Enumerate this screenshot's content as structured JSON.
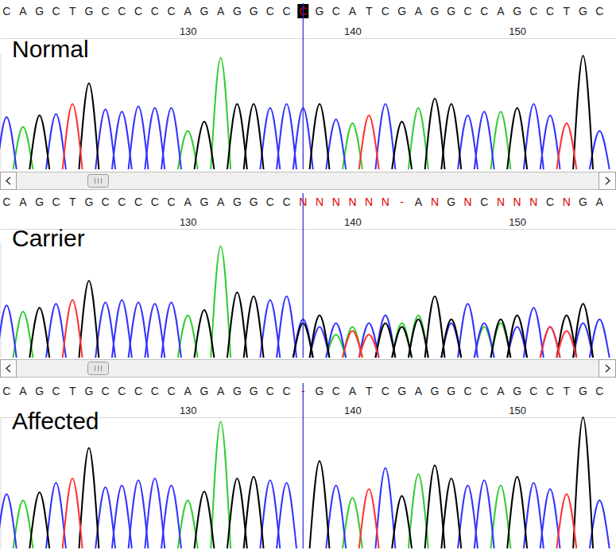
{
  "chart_data": [
    {
      "type": "chromatogram",
      "title": "Normal",
      "x": [
        119,
        120,
        121,
        122,
        123,
        124,
        125,
        126,
        127,
        128,
        129,
        130,
        131,
        132,
        133,
        134,
        135,
        136,
        137,
        138,
        139,
        140,
        141,
        142,
        143,
        144,
        145,
        146,
        147,
        148,
        149,
        150,
        151,
        152,
        153,
        154,
        155
      ],
      "sequence": [
        "C",
        "A",
        "G",
        "C",
        "T",
        "G",
        "C",
        "C",
        "C",
        "C",
        "C",
        "A",
        "G",
        "A",
        "G",
        "G",
        "C",
        "C",
        "C",
        "G",
        "C",
        "A",
        "T",
        "C",
        "G",
        "A",
        "G",
        "G",
        "C",
        "C",
        "A",
        "G",
        "C",
        "C",
        "T",
        "G",
        "C"
      ],
      "selected": 137,
      "xlim": [
        118.6,
        156
      ],
      "xticks": [
        130,
        140,
        150
      ],
      "ylim": [
        0,
        150
      ],
      "tick_labels": "x",
      "series": [
        {
          "color": "#33cc33",
          "values": [
            null,
            55,
            null,
            null,
            null,
            null,
            null,
            null,
            null,
            null,
            null,
            50,
            null,
            145,
            null,
            null,
            null,
            null,
            null,
            null,
            null,
            60,
            null,
            null,
            null,
            80,
            null,
            null,
            null,
            null,
            75,
            null,
            null,
            null,
            null,
            null,
            null
          ]
        },
        {
          "color": "#3333ff",
          "values": [
            68,
            null,
            null,
            72,
            null,
            null,
            78,
            75,
            82,
            80,
            80,
            null,
            null,
            null,
            null,
            null,
            80,
            85,
            80,
            null,
            65,
            null,
            null,
            85,
            null,
            null,
            null,
            null,
            70,
            75,
            null,
            null,
            85,
            70,
            null,
            null,
            50
          ]
        },
        {
          "color": "#000000",
          "values": [
            null,
            null,
            70,
            null,
            null,
            112,
            null,
            null,
            null,
            null,
            null,
            null,
            62,
            null,
            85,
            85,
            null,
            null,
            null,
            85,
            null,
            null,
            null,
            null,
            62,
            null,
            92,
            85,
            null,
            null,
            null,
            80,
            null,
            null,
            null,
            148,
            null
          ]
        },
        {
          "color": "#ff3333",
          "values": [
            null,
            null,
            null,
            null,
            85,
            null,
            null,
            null,
            null,
            null,
            null,
            null,
            null,
            null,
            null,
            null,
            null,
            null,
            null,
            null,
            null,
            null,
            70,
            null,
            null,
            null,
            null,
            null,
            null,
            null,
            null,
            null,
            null,
            null,
            60,
            null,
            null
          ]
        }
      ]
    },
    {
      "type": "chromatogram",
      "title": "Carrier",
      "x": [
        119,
        120,
        121,
        122,
        123,
        124,
        125,
        126,
        127,
        128,
        129,
        130,
        131,
        132,
        133,
        134,
        135,
        136,
        137,
        138,
        139,
        140,
        141,
        142,
        143,
        144,
        145,
        146,
        147,
        148,
        149,
        150,
        151,
        152,
        153,
        154,
        155
      ],
      "sequence": [
        "C",
        "A",
        "G",
        "C",
        "T",
        "G",
        "C",
        "C",
        "C",
        "C",
        "C",
        "A",
        "G",
        "A",
        "G",
        "G",
        "C",
        "C",
        "N",
        "N",
        "N",
        "N",
        "N",
        "N",
        "-",
        "A",
        "N",
        "G",
        "N",
        "C",
        "N",
        "N",
        "N",
        "C",
        "N",
        "G",
        "A"
      ],
      "selected": 137,
      "xlim": [
        118.6,
        156
      ],
      "xticks": [
        130,
        140,
        150
      ],
      "ylim": [
        0,
        150
      ],
      "tick_labels": "x",
      "series": [
        {
          "color": "#33cc33",
          "values": [
            null,
            60,
            null,
            null,
            null,
            null,
            null,
            null,
            null,
            null,
            null,
            55,
            null,
            145,
            null,
            null,
            null,
            null,
            null,
            null,
            30,
            40,
            null,
            null,
            45,
            55,
            null,
            null,
            null,
            40,
            45,
            null,
            null,
            null,
            null,
            null,
            null
          ]
        },
        {
          "color": "#3333ff",
          "values": [
            68,
            null,
            null,
            70,
            null,
            null,
            72,
            75,
            72,
            70,
            72,
            null,
            null,
            null,
            null,
            null,
            75,
            80,
            50,
            40,
            45,
            null,
            45,
            55,
            null,
            null,
            null,
            45,
            70,
            45,
            null,
            40,
            65,
            40,
            null,
            45,
            50
          ]
        },
        {
          "color": "#000000",
          "values": [
            null,
            null,
            65,
            null,
            null,
            100,
            null,
            null,
            null,
            null,
            null,
            null,
            62,
            null,
            85,
            80,
            null,
            null,
            45,
            55,
            null,
            null,
            null,
            45,
            40,
            50,
            80,
            50,
            null,
            null,
            50,
            55,
            null,
            null,
            55,
            70,
            null
          ]
        },
        {
          "color": "#ff3333",
          "values": [
            null,
            null,
            null,
            null,
            75,
            null,
            null,
            null,
            null,
            null,
            null,
            null,
            null,
            null,
            null,
            null,
            null,
            null,
            null,
            null,
            null,
            35,
            30,
            null,
            null,
            null,
            null,
            null,
            null,
            null,
            null,
            null,
            null,
            40,
            35,
            null,
            null
          ]
        }
      ]
    },
    {
      "type": "chromatogram",
      "title": "Affected",
      "x": [
        119,
        120,
        121,
        122,
        123,
        124,
        125,
        126,
        127,
        128,
        129,
        130,
        131,
        132,
        133,
        134,
        135,
        136,
        137,
        138,
        139,
        140,
        141,
        142,
        143,
        144,
        145,
        146,
        147,
        148,
        149,
        150,
        151,
        152,
        153,
        154,
        155
      ],
      "sequence": [
        "C",
        "A",
        "G",
        "C",
        "T",
        "G",
        "C",
        "C",
        "C",
        "C",
        "C",
        "A",
        "G",
        "A",
        "G",
        "G",
        "C",
        "C",
        "-",
        "G",
        "C",
        "A",
        "T",
        "C",
        "G",
        "A",
        "G",
        "G",
        "C",
        "C",
        "A",
        "G",
        "C",
        "C",
        "T",
        "G",
        "C"
      ],
      "selected": 137,
      "xlim": [
        118.6,
        156
      ],
      "xticks": [
        130,
        140,
        150
      ],
      "ylim": [
        0,
        150
      ],
      "tick_labels": "x",
      "series": [
        {
          "color": "#33cc33",
          "values": [
            null,
            55,
            null,
            null,
            null,
            null,
            null,
            null,
            null,
            null,
            null,
            55,
            null,
            145,
            null,
            null,
            null,
            null,
            null,
            null,
            null,
            58,
            null,
            null,
            null,
            85,
            null,
            null,
            null,
            null,
            72,
            null,
            null,
            null,
            null,
            null,
            null
          ]
        },
        {
          "color": "#3333ff",
          "values": [
            62,
            null,
            null,
            75,
            null,
            null,
            70,
            72,
            78,
            80,
            72,
            null,
            null,
            null,
            null,
            null,
            78,
            75,
            null,
            null,
            72,
            null,
            null,
            92,
            null,
            null,
            null,
            null,
            72,
            78,
            null,
            null,
            75,
            68,
            null,
            null,
            55
          ]
        },
        {
          "color": "#000000",
          "values": [
            null,
            null,
            64,
            null,
            null,
            115,
            null,
            null,
            null,
            null,
            null,
            null,
            65,
            null,
            80,
            82,
            null,
            null,
            null,
            100,
            null,
            null,
            null,
            null,
            60,
            null,
            95,
            80,
            null,
            null,
            null,
            82,
            null,
            null,
            null,
            150,
            null
          ]
        },
        {
          "color": "#ff3333",
          "values": [
            null,
            null,
            null,
            null,
            80,
            null,
            null,
            null,
            null,
            null,
            null,
            null,
            null,
            null,
            null,
            null,
            null,
            null,
            null,
            null,
            null,
            null,
            68,
            null,
            null,
            null,
            null,
            null,
            null,
            null,
            null,
            null,
            null,
            null,
            62,
            null,
            null
          ]
        }
      ]
    }
  ]
}
